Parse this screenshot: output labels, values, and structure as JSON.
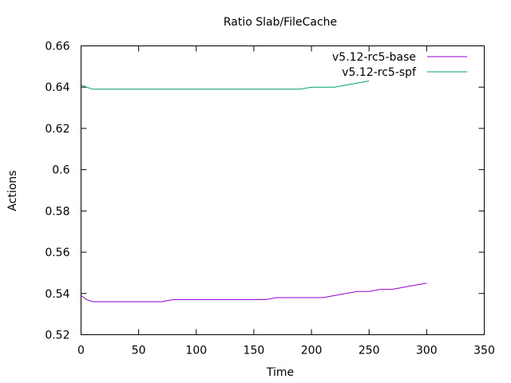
{
  "chart_data": {
    "type": "line",
    "title": "Ratio Slab/FileCache",
    "xlabel": "Time",
    "ylabel": "Actions",
    "xlim": [
      0,
      350
    ],
    "ylim": [
      0.52,
      0.66
    ],
    "x_ticks": [
      0,
      50,
      100,
      150,
      200,
      250,
      300,
      350
    ],
    "y_ticks": [
      0.52,
      0.54,
      0.56,
      0.58,
      0.6,
      0.62,
      0.64,
      0.66
    ],
    "x_tick_labels": [
      "0",
      "50",
      "100",
      "150",
      "200",
      "250",
      "300",
      "350"
    ],
    "y_tick_labels": [
      "0.52",
      "0.54",
      "0.56",
      "0.58",
      "0.6",
      "0.62",
      "0.64",
      "0.66"
    ],
    "grid": false,
    "legend_position": "top-right",
    "series": [
      {
        "name": "v5.12-rc5-base",
        "color": "#9400d3",
        "x": [
          0,
          5,
          10,
          20,
          30,
          40,
          50,
          60,
          70,
          80,
          90,
          100,
          110,
          120,
          130,
          140,
          150,
          160,
          170,
          180,
          190,
          200,
          210,
          220,
          230,
          240,
          250,
          260,
          270,
          280,
          290,
          300
        ],
        "y": [
          0.539,
          0.537,
          0.536,
          0.536,
          0.536,
          0.536,
          0.536,
          0.536,
          0.536,
          0.537,
          0.537,
          0.537,
          0.537,
          0.537,
          0.537,
          0.537,
          0.537,
          0.537,
          0.538,
          0.538,
          0.538,
          0.538,
          0.538,
          0.539,
          0.54,
          0.541,
          0.541,
          0.542,
          0.542,
          0.543,
          0.544,
          0.545
        ]
      },
      {
        "name": "v5.12-rc5-spf",
        "color": "#009e73",
        "x": [
          0,
          5,
          10,
          20,
          30,
          40,
          50,
          60,
          70,
          80,
          90,
          100,
          110,
          120,
          130,
          140,
          150,
          160,
          170,
          180,
          190,
          200,
          210,
          220,
          230,
          240,
          250
        ],
        "y": [
          0.641,
          0.64,
          0.639,
          0.639,
          0.639,
          0.639,
          0.639,
          0.639,
          0.639,
          0.639,
          0.639,
          0.639,
          0.639,
          0.639,
          0.639,
          0.639,
          0.639,
          0.639,
          0.639,
          0.639,
          0.639,
          0.64,
          0.64,
          0.64,
          0.641,
          0.642,
          0.643
        ]
      }
    ]
  }
}
